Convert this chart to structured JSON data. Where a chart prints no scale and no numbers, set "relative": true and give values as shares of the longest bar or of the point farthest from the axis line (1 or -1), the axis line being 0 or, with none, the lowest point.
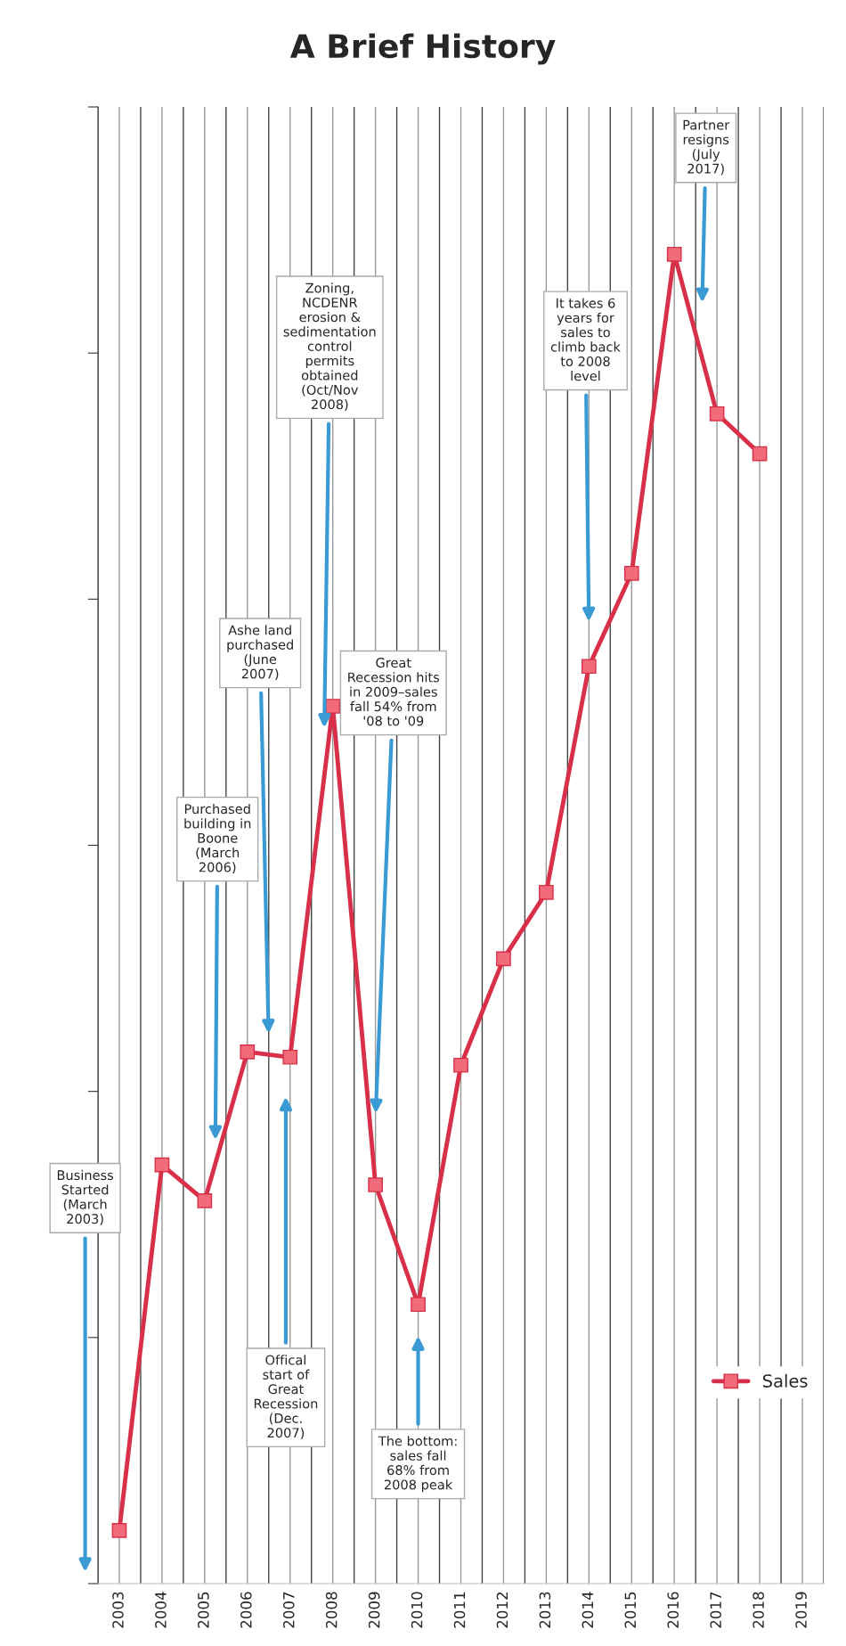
{
  "chart_data": {
    "type": "line",
    "title": "A Brief History",
    "relative": true,
    "x": [
      2003,
      2004,
      2005,
      2006,
      2007,
      2008,
      2009,
      2010,
      2011,
      2012,
      2013,
      2014,
      2015,
      2016,
      2017,
      2018
    ],
    "series": [
      {
        "name": "Sales",
        "color": "#d9304a",
        "values": [
          0.04,
          0.315,
          0.288,
          0.4,
          0.396,
          0.66,
          0.3,
          0.21,
          0.39,
          0.47,
          0.52,
          0.69,
          0.76,
          1.0,
          0.88,
          0.85
        ]
      }
    ],
    "xlim": [
      2002.5,
      2019.5
    ],
    "xticks": [
      {
        "value": 2002.5,
        "label": null
      },
      2003,
      {
        "value": 2003.5,
        "label": null
      },
      2004,
      {
        "value": 2004.5,
        "label": null
      },
      2005,
      {
        "value": 2005.5,
        "label": null
      },
      2006,
      {
        "value": 2006.5,
        "label": null
      },
      2007,
      {
        "value": 2007.5,
        "label": null
      },
      2008,
      {
        "value": 2008.5,
        "label": null
      },
      2009,
      {
        "value": 2009.5,
        "label": null
      },
      2010,
      {
        "value": 2010.5,
        "label": null
      },
      2011,
      {
        "value": 2011.5,
        "label": null
      },
      2012,
      {
        "value": 2012.5,
        "label": null
      },
      2013,
      {
        "value": 2013.5,
        "label": null
      },
      2014,
      {
        "value": 2014.5,
        "label": null
      },
      2015,
      {
        "value": 2015.5,
        "label": null
      },
      2016,
      {
        "value": 2016.5,
        "label": null
      },
      2017,
      {
        "value": 2017.5,
        "label": null
      },
      2018,
      {
        "value": 2018.5,
        "label": null
      },
      2019,
      {
        "value": 2019.5,
        "label": null
      }
    ],
    "grid": "x",
    "legend": "bottom right",
    "marker": "square",
    "line_style": "solid",
    "annotations": [
      "Business Started (March 2003)",
      "Purchased building in Boone (March 2006)",
      "Ashe land purchased (June 2007)",
      "Zoning, NCDENR erosion & sedimentation control permits obtained (Oct/Nov 2008)",
      "Offical start of Great Recession (Dec. 2007)",
      "Great Recession hits in 2009–sales fall 54% from '08 to '09",
      "The bottom: sales fall 68% from 2008 peak",
      "It takes 6 years for sales to climb back to 2008 level",
      "Partner resigns (July 2017)"
    ]
  }
}
